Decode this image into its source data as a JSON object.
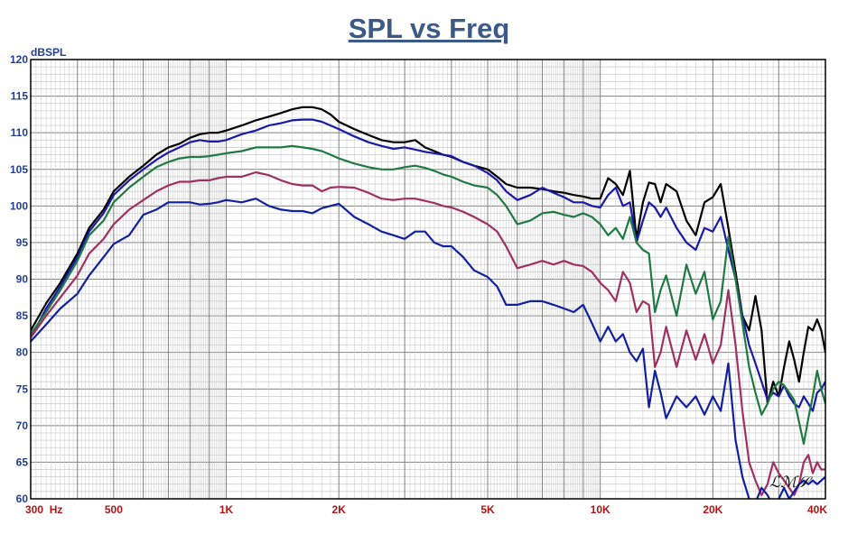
{
  "chart_data": {
    "type": "line",
    "title": "SPL vs Freq",
    "ylabel": "dBSPL",
    "xscale": "log",
    "xlim": [
      300,
      40000
    ],
    "ylim": [
      60,
      120
    ],
    "grid": true,
    "ytick_labels": [
      "120",
      "115",
      "110",
      "105",
      "100",
      "95",
      "90",
      "85",
      "80",
      "75",
      "70",
      "65",
      "60"
    ],
    "xtick_labels": [
      "300  Hz",
      "500",
      "1K",
      "2K",
      "5K",
      "10K",
      "20K",
      "40K"
    ],
    "logo_text": "LMS",
    "colors": [
      "#000000",
      "#1a1aa8",
      "#1f7a42",
      "#a03060",
      "#1020a0"
    ],
    "series": [
      {
        "color": "#000000",
        "x": [
          300,
          330,
          360,
          400,
          430,
          470,
          500,
          550,
          600,
          650,
          700,
          750,
          800,
          850,
          900,
          950,
          1000,
          1100,
          1200,
          1300,
          1400,
          1500,
          1600,
          1700,
          1800,
          1900,
          2000,
          2200,
          2400,
          2600,
          2800,
          3000,
          3200,
          3400,
          3600,
          3800,
          4000,
          4300,
          4600,
          5000,
          5300,
          5600,
          6000,
          6500,
          7000,
          7500,
          8000,
          8500,
          9000,
          9500,
          10000,
          10500,
          11000,
          11500,
          12000,
          12500,
          13000,
          13500,
          14000,
          14500,
          15000,
          16000,
          17000,
          18000,
          19000,
          20000,
          21000,
          22000,
          23000,
          24000,
          25000,
          26000,
          27000,
          28000,
          29000,
          30000,
          31000,
          32000,
          33000,
          34000,
          35000,
          36000,
          37000,
          38000,
          39000,
          40000
        ],
        "y": [
          83,
          86.7,
          89.5,
          93.5,
          97,
          99.5,
          102,
          104,
          105.5,
          107,
          108,
          108.5,
          109.3,
          109.8,
          110,
          110,
          110.3,
          111,
          111.7,
          112.2,
          112.7,
          113.2,
          113.5,
          113.5,
          113.2,
          112.5,
          111.5,
          110.5,
          109.7,
          109,
          108.7,
          108.7,
          109,
          108,
          107.5,
          107,
          106.7,
          106,
          105.5,
          105,
          104,
          103,
          102.5,
          102.5,
          102.3,
          102,
          101.8,
          101.5,
          101.3,
          101,
          101,
          103.8,
          103,
          101.5,
          104.8,
          95.5,
          100.5,
          103.2,
          103,
          100.5,
          103,
          102,
          98,
          96,
          100.5,
          101.2,
          103,
          97,
          91,
          85,
          83,
          87.7,
          83,
          73,
          76,
          74,
          78,
          81.5,
          79,
          76,
          80,
          83.5,
          83,
          84.5,
          83,
          80
        ]
      },
      {
        "color": "#1a1aa8",
        "x": [
          300,
          330,
          360,
          400,
          430,
          470,
          500,
          550,
          600,
          650,
          700,
          750,
          800,
          850,
          900,
          950,
          1000,
          1100,
          1200,
          1300,
          1400,
          1500,
          1600,
          1700,
          1800,
          1900,
          2000,
          2200,
          2400,
          2600,
          2800,
          3000,
          3200,
          3400,
          3600,
          3800,
          4000,
          4300,
          4600,
          5000,
          5300,
          5600,
          6000,
          6500,
          7000,
          7500,
          8000,
          8500,
          9000,
          9500,
          10000,
          10500,
          11000,
          11500,
          12000,
          12500,
          13000,
          13500,
          14000,
          14500,
          15000,
          16000,
          17000,
          18000,
          19000,
          20000,
          21000,
          22000,
          23000,
          24000,
          25000,
          26000,
          27000,
          28000,
          29000,
          30000,
          31000,
          32000,
          33000,
          34000,
          35000,
          36000,
          37000,
          38000,
          39000,
          40000
        ],
        "y": [
          82,
          86,
          89,
          93,
          96.5,
          99,
          101.5,
          103.5,
          105,
          106.3,
          107.3,
          108,
          108.7,
          109,
          108.8,
          108.8,
          109,
          109.8,
          110.3,
          111,
          111.3,
          111.7,
          111.8,
          111.8,
          111.5,
          111,
          110.5,
          109.5,
          108.7,
          108.2,
          107.8,
          108,
          107.7,
          107.4,
          107.2,
          107,
          106.8,
          106,
          105.5,
          104.5,
          103.5,
          102,
          100.8,
          101.5,
          102.5,
          101.8,
          101.2,
          100.5,
          100.5,
          100,
          99.8,
          101.5,
          102.5,
          100,
          100.5,
          95,
          98,
          100.5,
          99.8,
          98.5,
          99.8,
          97,
          95,
          94,
          97,
          96.5,
          98.5,
          94,
          90,
          85,
          81,
          78.5,
          76,
          73.5,
          74.5,
          74,
          75.5,
          74,
          73,
          72.5,
          74,
          73,
          72,
          74.5,
          75,
          76
        ]
      },
      {
        "color": "#1f7a42",
        "x": [
          300,
          330,
          360,
          400,
          430,
          470,
          500,
          550,
          600,
          650,
          700,
          750,
          800,
          850,
          900,
          950,
          1000,
          1100,
          1200,
          1300,
          1400,
          1500,
          1600,
          1700,
          1800,
          1900,
          2000,
          2200,
          2400,
          2600,
          2800,
          3000,
          3200,
          3400,
          3600,
          3800,
          4000,
          4300,
          4600,
          5000,
          5300,
          5600,
          6000,
          6500,
          7000,
          7500,
          8000,
          8500,
          9000,
          9500,
          10000,
          10500,
          11000,
          11500,
          12000,
          12500,
          13000,
          13500,
          14000,
          14500,
          15000,
          16000,
          17000,
          18000,
          19000,
          20000,
          21000,
          22000,
          23000,
          24000,
          25000,
          26000,
          27000,
          28000,
          29000,
          30000,
          31000,
          32000,
          33000,
          34000,
          35000,
          36000,
          37000,
          38000,
          39000,
          40000
        ],
        "y": [
          82.5,
          85.5,
          88.5,
          92.5,
          96,
          98,
          100.5,
          102.5,
          104,
          105.3,
          106,
          106.5,
          106.7,
          106.7,
          106.8,
          107,
          107.2,
          107.5,
          108,
          108,
          108,
          108.2,
          108,
          107.8,
          107.5,
          107,
          106.5,
          105.8,
          105.3,
          105,
          105,
          105.3,
          105.5,
          105.2,
          104.8,
          104.3,
          104,
          103.3,
          102.8,
          102.5,
          101.5,
          100,
          97.5,
          98,
          99,
          99.2,
          98.8,
          98.5,
          99,
          98.5,
          97.5,
          96,
          97,
          95.5,
          98.5,
          95,
          94,
          93.5,
          85.5,
          88.5,
          90.5,
          85,
          92,
          88,
          91,
          84.5,
          87,
          95.8,
          90,
          84,
          78,
          74.5,
          71.5,
          73,
          75,
          76,
          75.5,
          74.5,
          73.5,
          70.5,
          67.5,
          71,
          74,
          77.5,
          75,
          73
        ]
      },
      {
        "color": "#a03060",
        "x": [
          300,
          330,
          360,
          400,
          430,
          470,
          500,
          550,
          600,
          650,
          700,
          750,
          800,
          850,
          900,
          950,
          1000,
          1100,
          1200,
          1300,
          1400,
          1500,
          1600,
          1700,
          1800,
          1900,
          2000,
          2200,
          2400,
          2600,
          2800,
          3000,
          3200,
          3400,
          3600,
          3800,
          4000,
          4300,
          4600,
          5000,
          5300,
          5600,
          6000,
          6500,
          7000,
          7500,
          8000,
          8500,
          9000,
          9500,
          10000,
          10500,
          11000,
          11500,
          12000,
          12500,
          13000,
          13500,
          14000,
          14500,
          15000,
          16000,
          17000,
          18000,
          19000,
          20000,
          21000,
          22000,
          23000,
          24000,
          25000,
          26000,
          27000,
          28000,
          29000,
          30000,
          31000,
          32000,
          33000,
          34000,
          35000,
          36000,
          37000,
          38000,
          39000,
          40000
        ],
        "y": [
          82,
          85,
          87.5,
          90.5,
          93.5,
          95.5,
          97.5,
          99.5,
          100.8,
          102,
          102.8,
          103.3,
          103.3,
          103.5,
          103.5,
          103.8,
          104,
          104,
          104.6,
          104.2,
          103.5,
          103,
          102.8,
          102.8,
          102,
          102.5,
          102.6,
          102.5,
          101.8,
          101,
          100.8,
          101,
          101,
          100.7,
          100.4,
          100,
          99.8,
          99.2,
          98.5,
          97.5,
          96.5,
          94.5,
          91.5,
          92,
          92.5,
          92,
          92.5,
          92,
          91.8,
          91,
          89.5,
          88.5,
          87,
          91,
          89.5,
          85.5,
          87,
          86.5,
          78,
          80,
          83.5,
          78,
          83,
          79,
          82.5,
          78.5,
          81,
          88.5,
          81,
          72,
          65,
          62.5,
          60.5,
          62,
          65,
          63.5,
          62.5,
          61.5,
          60.5,
          62,
          65,
          66,
          63.5,
          65,
          64,
          64
        ]
      },
      {
        "color": "#1020a0",
        "x": [
          300,
          330,
          360,
          400,
          430,
          470,
          500,
          550,
          600,
          650,
          700,
          750,
          800,
          850,
          900,
          950,
          1000,
          1100,
          1200,
          1300,
          1400,
          1500,
          1600,
          1700,
          1800,
          1900,
          2000,
          2200,
          2400,
          2600,
          2800,
          3000,
          3200,
          3400,
          3600,
          3800,
          4000,
          4300,
          4600,
          5000,
          5300,
          5600,
          6000,
          6500,
          7000,
          7500,
          8000,
          8500,
          9000,
          9500,
          10000,
          10500,
          11000,
          11500,
          12000,
          12500,
          13000,
          13500,
          14000,
          14500,
          15000,
          16000,
          17000,
          18000,
          19000,
          20000,
          21000,
          22000,
          23000,
          24000,
          25000,
          26000,
          27000,
          28000,
          29000,
          30000,
          31000,
          32000,
          33000,
          34000,
          35000,
          36000,
          37000,
          38000,
          39000,
          40000
        ],
        "y": [
          81.5,
          83.8,
          86,
          88,
          90.5,
          93,
          94.8,
          96,
          98.8,
          99.5,
          100.5,
          100.5,
          100.5,
          100.2,
          100.3,
          100.5,
          100.8,
          100.5,
          101,
          100,
          99.5,
          99.3,
          99.3,
          99,
          99.7,
          100,
          100.3,
          98.5,
          97.5,
          96.5,
          96,
          95.5,
          96.5,
          96.5,
          95,
          94.5,
          94.5,
          93,
          91.2,
          90.3,
          89,
          86.5,
          86.5,
          87,
          87,
          86.5,
          86,
          85.5,
          86.5,
          84,
          81.5,
          83.5,
          81.5,
          82.5,
          80,
          78.8,
          80.5,
          72.5,
          77.5,
          74.5,
          71,
          74,
          72.5,
          74,
          71.5,
          74,
          72,
          78.5,
          68,
          63,
          60,
          59.5,
          61.5,
          60.5,
          59,
          60,
          61.5,
          60,
          61,
          62,
          62.5,
          62,
          62.5,
          62,
          62.5,
          63
        ]
      }
    ]
  }
}
